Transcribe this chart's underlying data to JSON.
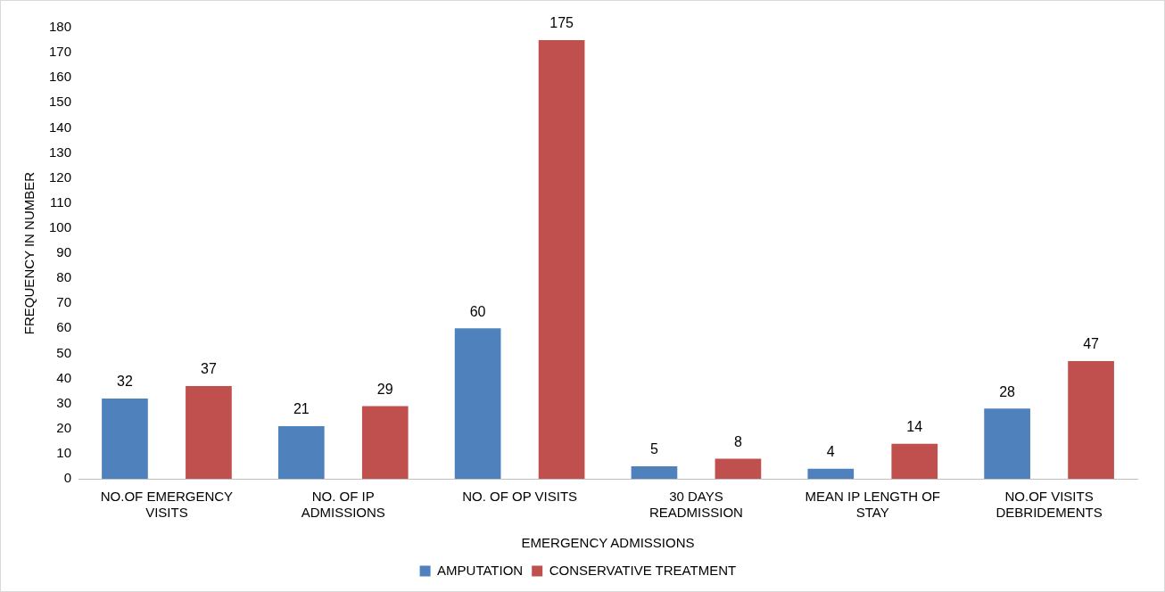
{
  "chart_data": {
    "type": "bar",
    "xlabel": "EMERGENCY ADMISSIONS",
    "ylabel": "FREQUENCY IN NUMBER",
    "categories": [
      "NO.OF EMERGENCY VISITS",
      "NO. OF IP ADMISSIONS",
      "NO. OF OP VISITS",
      "30 DAYS READMISSION",
      "MEAN IP LENGTH OF STAY",
      "NO.OF VISITS DEBRIDEMENTS"
    ],
    "series": [
      {
        "name": "AMPUTATION",
        "color": "#4f81bd",
        "values": [
          32,
          21,
          60,
          5,
          4,
          28
        ]
      },
      {
        "name": "CONSERVATIVE TREATMENT",
        "color": "#c0504d",
        "values": [
          37,
          29,
          175,
          8,
          14,
          47
        ]
      }
    ],
    "ylim": [
      0,
      180
    ],
    "yticks": [
      0,
      10,
      20,
      30,
      40,
      50,
      60,
      70,
      80,
      90,
      100,
      110,
      120,
      130,
      140,
      150,
      160,
      170,
      180
    ],
    "grid": false,
    "legend": "bottom",
    "data_labels": true
  }
}
